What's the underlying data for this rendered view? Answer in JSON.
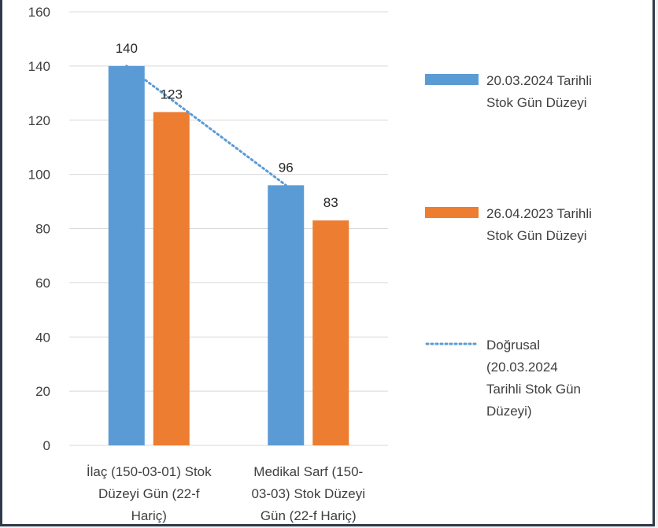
{
  "chart_data": {
    "type": "bar",
    "title": "",
    "xlabel": "",
    "ylabel": "",
    "ylim": [
      0,
      160
    ],
    "yticks": [
      0,
      20,
      40,
      60,
      80,
      100,
      120,
      140,
      160
    ],
    "grid": true,
    "categories": [
      [
        "İlaç (150-03-01) Stok",
        "Düzeyi Gün (22-f",
        "Hariç)"
      ],
      [
        "Medikal Sarf (150-",
        "03-03) Stok Düzeyi",
        "Gün (22-f Hariç)"
      ]
    ],
    "series": [
      {
        "name": [
          "20.03.2024 Tarihli",
          "Stok Gün Düzeyi"
        ],
        "values": [
          140,
          96
        ],
        "color": "#5b9bd5"
      },
      {
        "name": [
          "26.04.2023 Tarihli",
          "Stok Gün Düzeyi"
        ],
        "values": [
          123,
          83
        ],
        "color": "#ed7d31"
      }
    ],
    "trendline": {
      "name": [
        "Doğrusal",
        "(20.03.2024",
        "Tarihli Stok Gün",
        "Düzeyi)"
      ],
      "series_index": 0,
      "type": "linear",
      "style": "dotted",
      "color": "#5b9bd5"
    },
    "legend_position": "right"
  }
}
